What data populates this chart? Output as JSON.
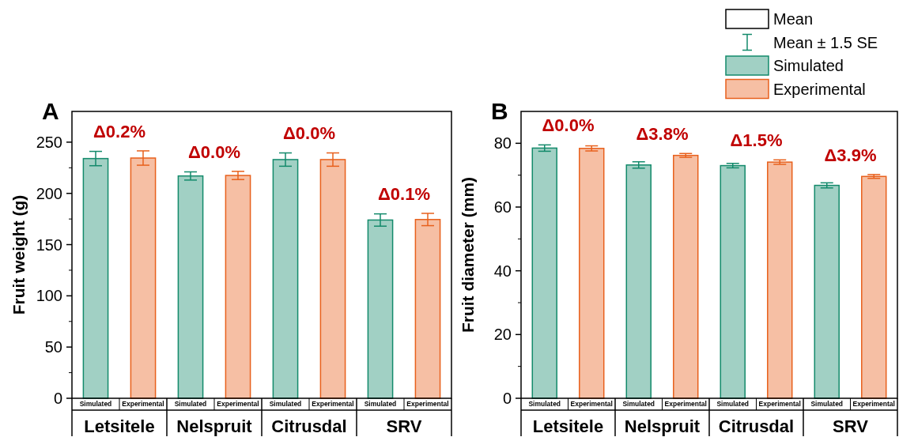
{
  "chart_data": [
    {
      "type": "bar",
      "title": "A",
      "ylabel": "Fruit weight (g)",
      "categories": [
        "Letsitele",
        "Nelspruit",
        "Citrusdal",
        "SRV"
      ],
      "series": [
        {
          "name": "Simulated",
          "color": "#138a6b",
          "values": [
            234,
            217,
            233,
            174
          ],
          "errors": [
            7,
            4,
            6.5,
            6
          ]
        },
        {
          "name": "Experimental",
          "color": "#e8601c",
          "values": [
            234.5,
            217.5,
            233,
            174.5
          ],
          "errors": [
            7,
            4,
            6.5,
            6
          ]
        }
      ],
      "ylim": [
        0,
        280
      ],
      "yticks": [
        0,
        50,
        100,
        150,
        200,
        250
      ],
      "grid": false,
      "annotations": [
        "Δ0.2%",
        "Δ0.0%",
        "Δ0.0%",
        "Δ0.1%"
      ]
    },
    {
      "type": "bar",
      "title": "B",
      "ylabel": "Fruit diameter (mm)",
      "categories": [
        "Letsitele",
        "Nelspruit",
        "Citrusdal",
        "SRV"
      ],
      "series": [
        {
          "name": "Simulated",
          "color": "#138a6b",
          "values": [
            78.5,
            73.2,
            73.0,
            66.8
          ],
          "errors": [
            1,
            1,
            0.7,
            0.8
          ]
        },
        {
          "name": "Experimental",
          "color": "#e8601c",
          "values": [
            78.4,
            76.2,
            74.1,
            69.6
          ],
          "errors": [
            0.8,
            0.6,
            0.7,
            0.6
          ]
        }
      ],
      "ylim": [
        0,
        90
      ],
      "yticks": [
        0,
        20,
        40,
        60,
        80
      ],
      "grid": false,
      "legend": "top right",
      "annotations": [
        "Δ0.0%",
        "Δ3.8%",
        "Δ1.5%",
        "Δ3.9%",
        "Mean",
        "Mean ± 1.5 SE"
      ]
    }
  ]
}
